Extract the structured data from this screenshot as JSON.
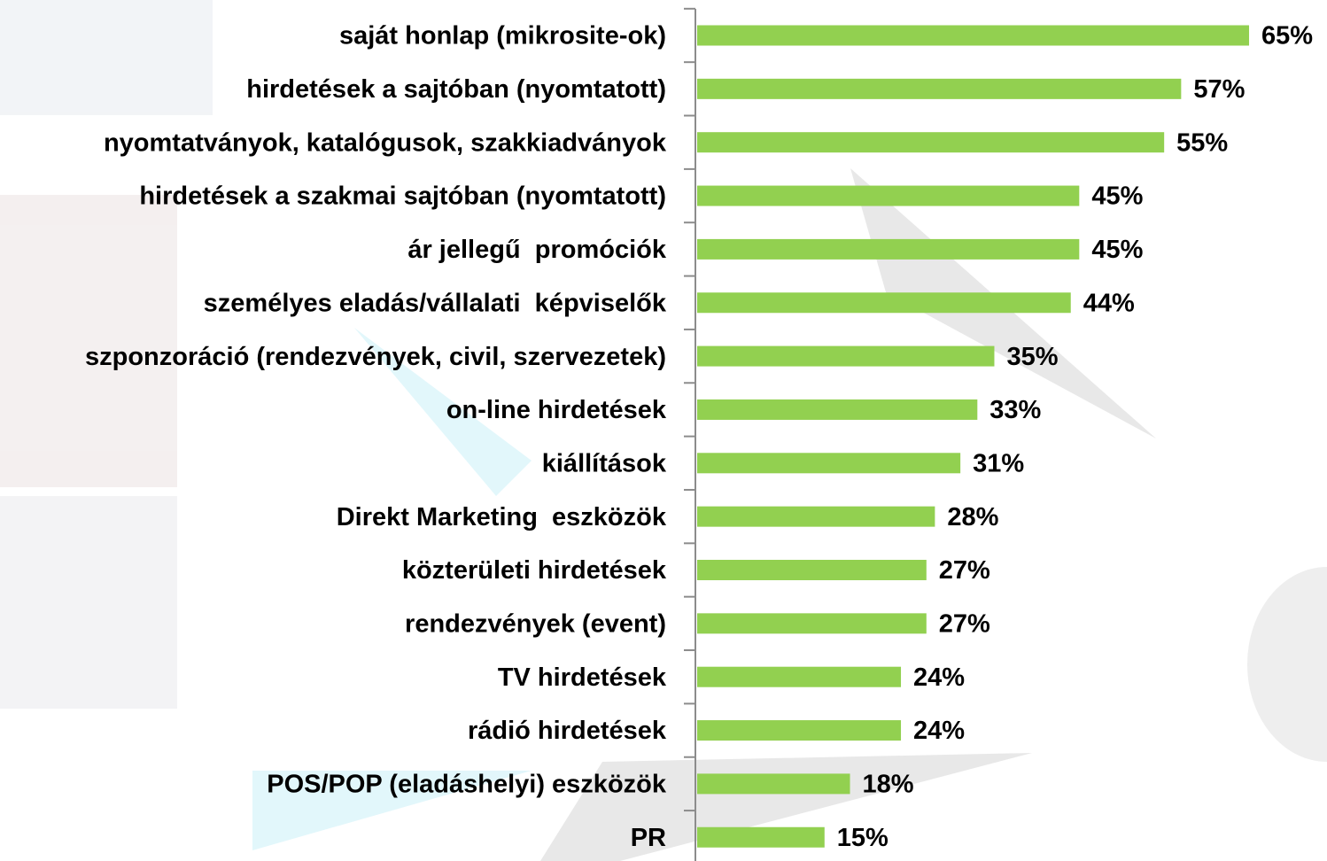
{
  "chart_data": {
    "type": "hbar",
    "categories": [
      "saját honlap (mikrosite-ok)",
      "hirdetések a sajtóban (nyomtatott)",
      "nyomtatványok, katalógusok, szakkiadványok",
      "hirdetések a szakmai sajtóban (nyomtatott)",
      "ár jellegű  promóciók",
      "személyes eladás/vállalati  képviselők",
      "szponzoráció (rendezvények, civil, szervezetek)",
      "on-line hirdetések",
      "kiállítások",
      "Direkt Marketing  eszközök",
      "közterületi hirdetések",
      "rendezvények (event)",
      "TV hirdetések",
      "rádió hirdetések",
      "POS/POP (eladáshelyi) eszközök",
      "PR"
    ],
    "values": [
      65,
      57,
      55,
      45,
      45,
      44,
      35,
      33,
      31,
      28,
      27,
      27,
      24,
      24,
      18,
      15
    ],
    "value_labels": [
      "65%",
      "57%",
      "55%",
      "45%",
      "45%",
      "44%",
      "35%",
      "33%",
      "31%",
      "28%",
      "27%",
      "27%",
      "24%",
      "24%",
      "18%",
      "15%"
    ],
    "color": "#92d050"
  }
}
